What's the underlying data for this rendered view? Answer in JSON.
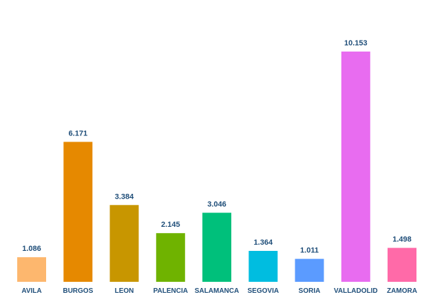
{
  "chart_data": {
    "type": "bar",
    "title": "",
    "xlabel": "",
    "ylabel": "",
    "categories": [
      "AVILA",
      "BURGOS",
      "LEON",
      "PALENCIA",
      "SALAMANCA",
      "SEGOVIA",
      "SORIA",
      "VALLADOLID",
      "ZAMORA"
    ],
    "values": [
      1.086,
      6.171,
      3.384,
      2.145,
      3.046,
      1.364,
      1.011,
      10.153,
      1.498
    ],
    "value_labels": [
      "1.086",
      "6.171",
      "3.384",
      "2.145",
      "3.046",
      "1.364",
      "1.011",
      "10.153",
      "1.498"
    ],
    "colors": [
      "#fdb76e",
      "#e68900",
      "#c89600",
      "#6fb300",
      "#00c07b",
      "#00bde0",
      "#5b9bff",
      "#e86cf0",
      "#ff6aa8"
    ],
    "ylim": [
      0,
      10.153
    ],
    "grid": false,
    "legend": "none"
  }
}
